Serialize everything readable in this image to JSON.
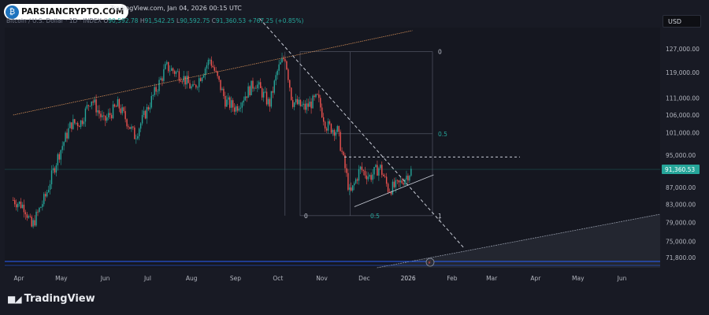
{
  "watermark": {
    "text": "PARSIANCRYPTO.COM",
    "icon": "bitcoin-globe-icon"
  },
  "header": {
    "source_line": "TradingView.com, Jan 04, 2026 00:15 UTC",
    "symbol": "Bitcoin / U.S. Dollar · 1D · INDEX",
    "open_label": "O",
    "open": "90,592.78",
    "high_label": "H",
    "high": "91,542.25",
    "low_label": "L",
    "low": "90,592.75",
    "close_label": "C",
    "close": "91,360.53",
    "change": "+767.25 (+0.85%)"
  },
  "currency": "USD",
  "footer": {
    "brand": "TradingView",
    "icon": "tradingview-logo-icon"
  },
  "colors": {
    "up": "#26a69a",
    "down": "#ef5350",
    "background": "#181a24",
    "trend_upper": "#f0a060",
    "price_tag": "#26a69a"
  },
  "chart_data": {
    "type": "candlestick",
    "x_ticks": [
      "Apr",
      "May",
      "Jun",
      "Jul",
      "Aug",
      "Sep",
      "Oct",
      "Nov",
      "Dec",
      "2026",
      "Feb",
      "Mar",
      "Apr",
      "May",
      "Jun"
    ],
    "y_ticks": [
      "127,000.00",
      "119,000.00",
      "111,000.00",
      "106,000.00",
      "101,000.00",
      "95,000.00",
      "87,000.00",
      "83,000.00",
      "79,000.00",
      "75,000.00",
      "71,800.00"
    ],
    "y_scale": "log",
    "last_price": "91,360.53",
    "last_price_value": 91360.53,
    "fib_labels": [
      "0",
      "0.5",
      "1",
      "0",
      "0.5",
      "1"
    ],
    "grid": false,
    "series": [
      {
        "name": "BTCUSD",
        "x": [
          "2025-03-28",
          "2025-04-05",
          "2025-04-10",
          "2025-04-20",
          "2025-04-28",
          "2025-05-08",
          "2025-05-15",
          "2025-05-22",
          "2025-05-31",
          "2025-06-10",
          "2025-06-22",
          "2025-07-01",
          "2025-07-11",
          "2025-07-14",
          "2025-07-25",
          "2025-08-02",
          "2025-08-14",
          "2025-08-25",
          "2025-09-01",
          "2025-09-15",
          "2025-09-25",
          "2025-10-01",
          "2025-10-06",
          "2025-10-11",
          "2025-10-20",
          "2025-10-29",
          "2025-11-04",
          "2025-11-12",
          "2025-11-21",
          "2025-11-28",
          "2025-12-05",
          "2025-12-12",
          "2025-12-18",
          "2025-12-25",
          "2026-01-04"
        ],
        "close": [
          84000,
          82500,
          78000,
          85000,
          94000,
          103500,
          104000,
          111000,
          104000,
          109000,
          100000,
          108000,
          117500,
          121000,
          118000,
          113500,
          123500,
          110000,
          108000,
          116000,
          109000,
          120000,
          124500,
          110000,
          108000,
          111000,
          103000,
          101500,
          85000,
          91500,
          89500,
          92000,
          86500,
          87500,
          91360
        ]
      }
    ],
    "annotations": [
      {
        "type": "trendline",
        "label": "upper",
        "from": [
          "2025-03-28",
          106000
        ],
        "to": [
          "2026-01-04",
          133500
        ]
      },
      {
        "type": "trendline",
        "label": "descending",
        "from": [
          "2025-09-18",
          138000
        ],
        "to": [
          "2026-02-10",
          73500
        ]
      },
      {
        "type": "trendline",
        "label": "rising-support",
        "from": [
          "2025-11-24",
          82500
        ],
        "to": [
          "2026-01-19",
          90000
        ]
      },
      {
        "type": "horizontal",
        "label": "resistance",
        "value": 94500
      },
      {
        "type": "fib_retracement",
        "from": [
          "2025-10-06",
          126000
        ],
        "to": [
          "2025-11-21",
          80500
        ]
      }
    ]
  }
}
